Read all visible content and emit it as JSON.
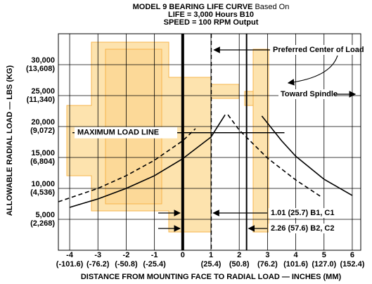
{
  "chart_data": {
    "type": "line",
    "title": "MODEL 9 BEARING LIFE CURVE",
    "title_suffix": "Based On",
    "subtitle": [
      "LIFE = 3,000 Hours B10",
      "SPEED = 100 RPM Output"
    ],
    "xlabel": "DISTANCE FROM MOUNTING FACE TO RADIAL LOAD — INCHES (MM)",
    "ylabel": "ALLOWABLE RADIAL LOAD — LBS (KG)",
    "xlim": [
      -4.4,
      6.3
    ],
    "ylim": [
      0,
      35000
    ],
    "xticks": [
      -4,
      -3,
      -2,
      -1,
      0,
      1,
      2,
      3,
      4,
      5,
      6
    ],
    "xtick_mm_labels": [
      "(-101.6)",
      "(-76.2)",
      "(-50.8)",
      "(-25.4)",
      null,
      "(25.4)",
      "(50.8)",
      "(76.2)",
      "(101.6)",
      "(127.0)",
      "(152.4)"
    ],
    "yticks": [
      {
        "value": 5000,
        "label": "5,000"
      },
      {
        "value": 10000,
        "label": "10,000"
      },
      {
        "value": 15000,
        "label": "15,000"
      },
      {
        "value": 20000,
        "label": "20,000"
      },
      {
        "value": 25000,
        "label": "25,000"
      },
      {
        "value": 30000,
        "label": "30,000"
      }
    ],
    "ytick_kg_labels": [
      "(2,268)",
      "(4,536)",
      "(6,804)",
      "(9,072)",
      "(11,340)",
      "(13,608)"
    ],
    "grid": true,
    "series": [
      {
        "style": "dashed",
        "color": "#000000",
        "x": [
          -4.4,
          -3,
          -2,
          -1,
          0,
          0.45
        ],
        "values": [
          7840,
          10000,
          12050,
          14550,
          17700,
          19650
        ]
      },
      {
        "style": "solid",
        "color": "#000000",
        "x": [
          -4,
          -3,
          -2,
          -1,
          0,
          1,
          1.5
        ],
        "values": [
          6930,
          8300,
          10000,
          12050,
          14800,
          18300,
          21900
        ]
      },
      {
        "style": "dashed",
        "color": "#000000",
        "x": [
          1.6,
          2,
          3,
          4,
          4.9
        ],
        "values": [
          21900,
          19430,
          14900,
          11360,
          8640
        ]
      },
      {
        "style": "solid",
        "color": "#000000",
        "x": [
          2.8,
          3.5,
          4,
          5,
          6
        ],
        "values": [
          21700,
          17700,
          15200,
          11480,
          8860
        ]
      }
    ],
    "vlines": [
      {
        "value": 0,
        "style": "thick"
      },
      {
        "value": 1.01,
        "style": "dashed"
      },
      {
        "value": 2.26,
        "style": "solid"
      }
    ],
    "max_load_line": {
      "label": "MAXIMUM LOAD LINE",
      "value": 19000,
      "x": [
        -3.9,
        3.6
      ]
    },
    "annotations": [
      "Preferred Center of Load",
      "Toward Spindle",
      "1.01 (25.7) B1, C1",
      "2.26 (57.6) B2, C2"
    ]
  }
}
